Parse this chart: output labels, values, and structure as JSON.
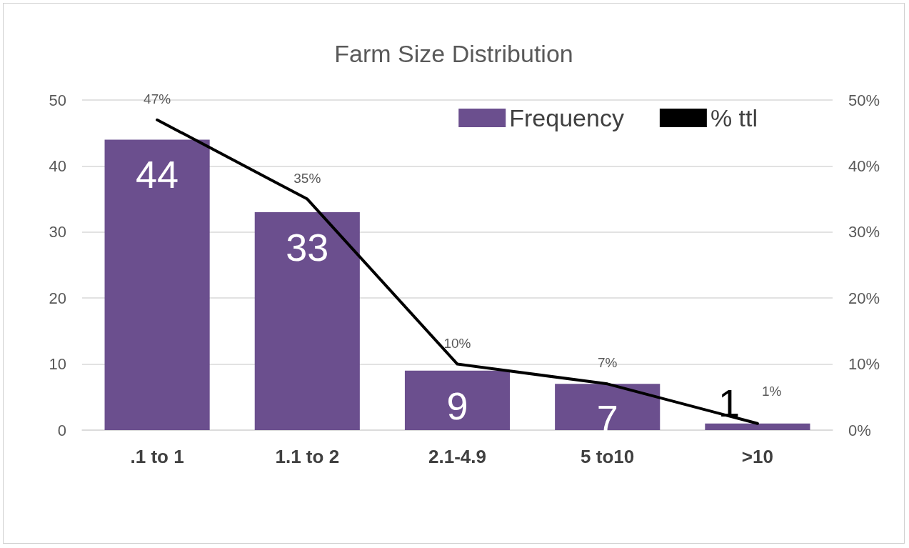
{
  "chart_data": {
    "type": "bar",
    "title": "Farm Size Distribution",
    "categories": [
      ".1 to 1",
      "1.1 to 2",
      "2.1-4.9",
      "5 to10",
      ">10"
    ],
    "series": [
      {
        "name": "Frequency",
        "color": "#6b4f8e",
        "values": [
          44,
          33,
          9,
          7,
          1
        ],
        "value_labels": [
          "44",
          "33",
          "9",
          "7",
          "1"
        ]
      },
      {
        "name": "% ttl",
        "type": "line",
        "axis": "y2",
        "color": "#000000",
        "values": [
          47,
          35,
          10,
          7,
          1
        ],
        "value_labels": [
          "47%",
          "35%",
          "10%",
          "7%",
          "1%"
        ]
      }
    ],
    "ylim": [
      0,
      50
    ],
    "yticks": [
      0,
      10,
      20,
      30,
      40,
      50
    ],
    "y2lim": [
      0,
      50
    ],
    "y2ticks": [
      {
        "value": 0,
        "label": "0%"
      },
      {
        "value": 10,
        "label": "10%"
      },
      {
        "value": 20,
        "label": "20%"
      },
      {
        "value": 30,
        "label": "30%"
      },
      {
        "value": 40,
        "label": "40%"
      },
      {
        "value": 50,
        "label": "50%"
      }
    ],
    "grid": "y",
    "legend": "top right",
    "marker": "none",
    "line_style": "solid"
  }
}
